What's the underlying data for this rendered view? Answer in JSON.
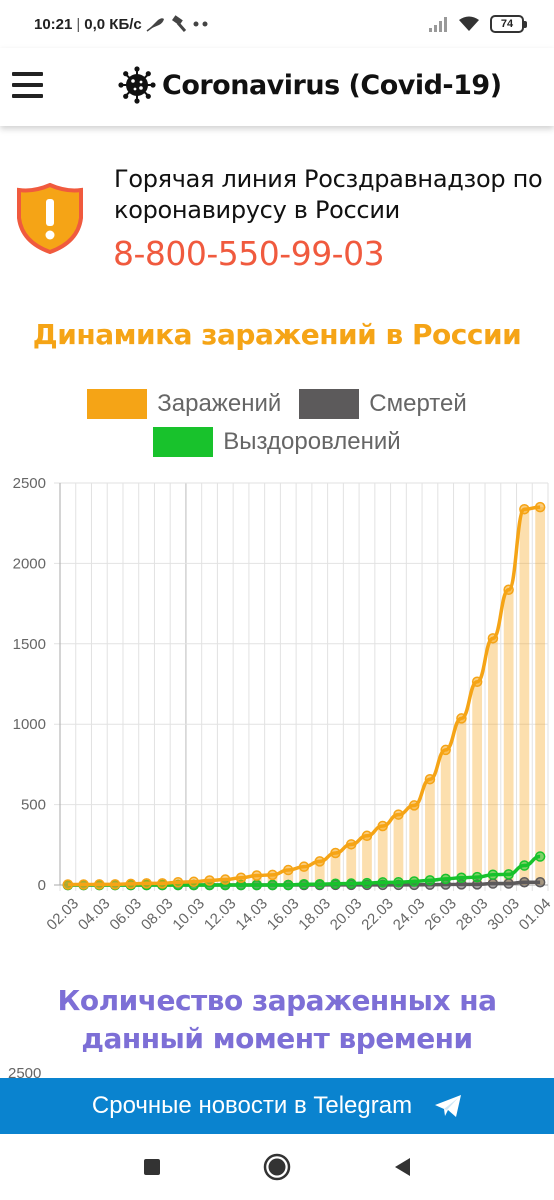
{
  "status_bar": {
    "time": "10:21",
    "network_speed": "0,0 КБ/с",
    "battery": "74",
    "icons": [
      "feather-icon",
      "hammer-icon",
      "more-dots-icon",
      "signal-icon",
      "wifi-icon",
      "battery-icon"
    ]
  },
  "app_bar": {
    "title": "Coronavirus (Covid-19)",
    "menu_icon": "hamburger-menu-icon",
    "logo_icon": "virus-icon"
  },
  "hotline": {
    "title": "Горячая линия Росздравнадзор по коронавирусу в России",
    "phone": "8-800-550-99-03",
    "icon": "warning-shield-icon",
    "colors": {
      "phone": "#f05a3e",
      "shield": "#f5a416",
      "shield_border": "#f05a3e"
    }
  },
  "section1": {
    "title": "Динамика заражений в России",
    "color": "#f5a416"
  },
  "legend": [
    {
      "label": "Заражений",
      "color": "#f5a416"
    },
    {
      "label": "Смертей",
      "color": "#5c5a5b"
    },
    {
      "label": "Выздоровлений",
      "color": "#18c22c"
    }
  ],
  "chart_data": {
    "type": "line",
    "x": [
      "02.03",
      "03.03",
      "04.03",
      "05.03",
      "06.03",
      "07.03",
      "08.03",
      "09.03",
      "10.03",
      "11.03",
      "12.03",
      "13.03",
      "14.03",
      "15.03",
      "16.03",
      "17.03",
      "18.03",
      "19.03",
      "20.03",
      "21.03",
      "22.03",
      "23.03",
      "24.03",
      "25.03",
      "26.03",
      "27.03",
      "28.03",
      "29.03",
      "30.03",
      "31.03",
      "01.04"
    ],
    "x_tick_labels": [
      "02.03",
      "04.03",
      "06.03",
      "08.03",
      "10.03",
      "12.03",
      "14.03",
      "16.03",
      "18.03",
      "20.03",
      "22.03",
      "24.03",
      "26.03",
      "28.03",
      "30.03",
      "01.04"
    ],
    "series": [
      {
        "name": "Заражений",
        "color": "#f5a416",
        "style": "line+bar",
        "values": [
          3,
          3,
          4,
          4,
          7,
          10,
          10,
          17,
          20,
          28,
          34,
          45,
          59,
          63,
          93,
          114,
          147,
          199,
          253,
          306,
          367,
          438,
          495,
          658,
          840,
          1036,
          1264,
          1534,
          1836,
          2337,
          2350
        ]
      },
      {
        "name": "Смертей",
        "color": "#5c5a5b",
        "style": "line",
        "values": [
          0,
          0,
          0,
          0,
          0,
          0,
          0,
          0,
          0,
          0,
          0,
          0,
          0,
          0,
          0,
          0,
          0,
          1,
          1,
          1,
          1,
          1,
          1,
          2,
          3,
          4,
          4,
          9,
          9,
          17,
          17
        ]
      },
      {
        "name": "Выздоровлений",
        "color": "#18c22c",
        "style": "line",
        "values": [
          0,
          0,
          0,
          0,
          0,
          0,
          0,
          0,
          0,
          0,
          0,
          0,
          0,
          0,
          0,
          5,
          5,
          8,
          9,
          12,
          16,
          17,
          22,
          29,
          38,
          45,
          49,
          64,
          66,
          121,
          177
        ]
      }
    ],
    "y_ticks": [
      0,
      500,
      1000,
      1500,
      2000,
      2500
    ],
    "ylim": [
      0,
      2500
    ],
    "grid": true,
    "legend_position": "top"
  },
  "section2": {
    "title": "Количество зараженных на данный момент времени",
    "color": "#7d6fd6",
    "first_tick": "2500"
  },
  "telegram": {
    "label": "Срочные новости в Telegram",
    "icon": "telegram-send-icon",
    "color": "#0a83cf"
  },
  "nav_bar": {
    "icons": [
      "recents-square-icon",
      "home-circle-icon",
      "back-triangle-icon"
    ]
  }
}
